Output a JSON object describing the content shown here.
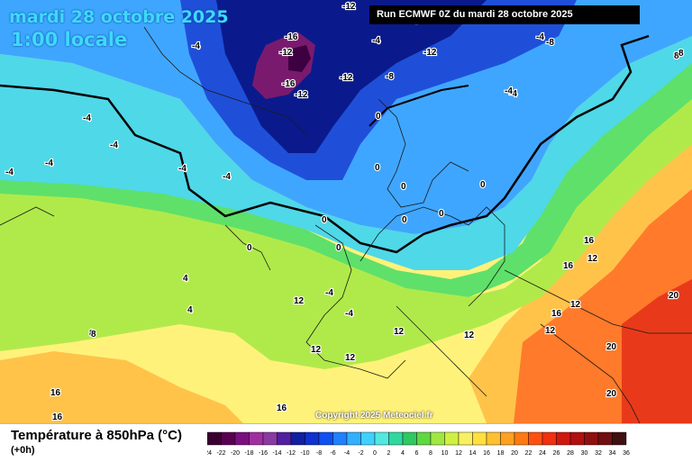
{
  "header": {
    "date": "mardi 28 octobre 2025",
    "time": "1:00 locale",
    "run": "Run ECMWF 0Z du mardi 28 octobre 2025"
  },
  "copyright": "Copyright 2025 Meteociel.fr",
  "footer": {
    "title": "Température à 850hPa (°C)",
    "subtitle": "(+0h)"
  },
  "colors": {
    "m24": "#3d0040",
    "m16": "#7a1a6e",
    "m12": "#0a1a8c",
    "m8": "#1f4fd8",
    "m4": "#3fa6ff",
    "zero": "#4fd8e8",
    "p4": "#5fe06a",
    "p8": "#b0ea4a",
    "p12": "#fff27a",
    "p16": "#ffc34a",
    "p20": "#ff7a2a",
    "p24": "#e83a1a"
  },
  "legend": {
    "ticks": [
      "-24",
      "-22",
      "-20",
      "-18",
      "-16",
      "-14",
      "-12",
      "-10",
      "-8",
      "-6",
      "-4",
      "-2",
      "0",
      "2",
      "4",
      "6",
      "8",
      "10",
      "12",
      "14",
      "16",
      "18",
      "20",
      "22",
      "24",
      "26",
      "28",
      "30",
      "32",
      "34",
      "36"
    ],
    "colors": [
      "#3a0030",
      "#5a0050",
      "#7a1080",
      "#a030a0",
      "#8a3aa0",
      "#5020a0",
      "#1020a0",
      "#1030d0",
      "#1050f0",
      "#2080ff",
      "#30b0ff",
      "#40d0ff",
      "#50e8e0",
      "#30d8a0",
      "#30c860",
      "#60d840",
      "#a0e840",
      "#d0f040",
      "#f8f060",
      "#ffe040",
      "#ffc030",
      "#ffa020",
      "#ff7a10",
      "#ff5010",
      "#f03010",
      "#d01810",
      "#b01010",
      "#901010",
      "#701010",
      "#401010"
    ]
  },
  "labels": [
    {
      "text": "-12"
    },
    {
      "text": "-16"
    },
    {
      "text": "-12"
    },
    {
      "text": "-16"
    },
    {
      "text": "-12"
    },
    {
      "text": "-12"
    },
    {
      "text": "-8"
    },
    {
      "text": "-12"
    },
    {
      "text": "-8"
    },
    {
      "text": "-4"
    },
    {
      "text": "-4"
    },
    {
      "text": "-4"
    },
    {
      "text": "-4"
    },
    {
      "text": "-4"
    },
    {
      "text": "-4"
    },
    {
      "text": "-4"
    },
    {
      "text": "-4"
    },
    {
      "text": "0"
    },
    {
      "text": "0"
    },
    {
      "text": "0"
    },
    {
      "text": "0"
    },
    {
      "text": "0"
    },
    {
      "text": "0"
    },
    {
      "text": "0"
    },
    {
      "text": "0"
    },
    {
      "text": "0"
    },
    {
      "text": "4"
    },
    {
      "text": "4"
    },
    {
      "text": "-4"
    },
    {
      "text": "8"
    },
    {
      "text": "8"
    },
    {
      "text": "12"
    },
    {
      "text": "12"
    },
    {
      "text": "12"
    },
    {
      "text": "12"
    },
    {
      "text": "12"
    },
    {
      "text": "12"
    },
    {
      "text": "12"
    },
    {
      "text": "12"
    },
    {
      "text": "16"
    },
    {
      "text": "16"
    },
    {
      "text": "16"
    },
    {
      "text": "16"
    },
    {
      "text": "16"
    },
    {
      "text": "16"
    },
    {
      "text": "20"
    },
    {
      "text": "20"
    },
    {
      "text": "20"
    },
    {
      "text": "8"
    },
    {
      "text": "-4"
    },
    {
      "text": "-4"
    },
    {
      "text": "-4"
    },
    {
      "text": "-4"
    },
    {
      "text": "-4"
    },
    {
      "text": "8"
    }
  ]
}
